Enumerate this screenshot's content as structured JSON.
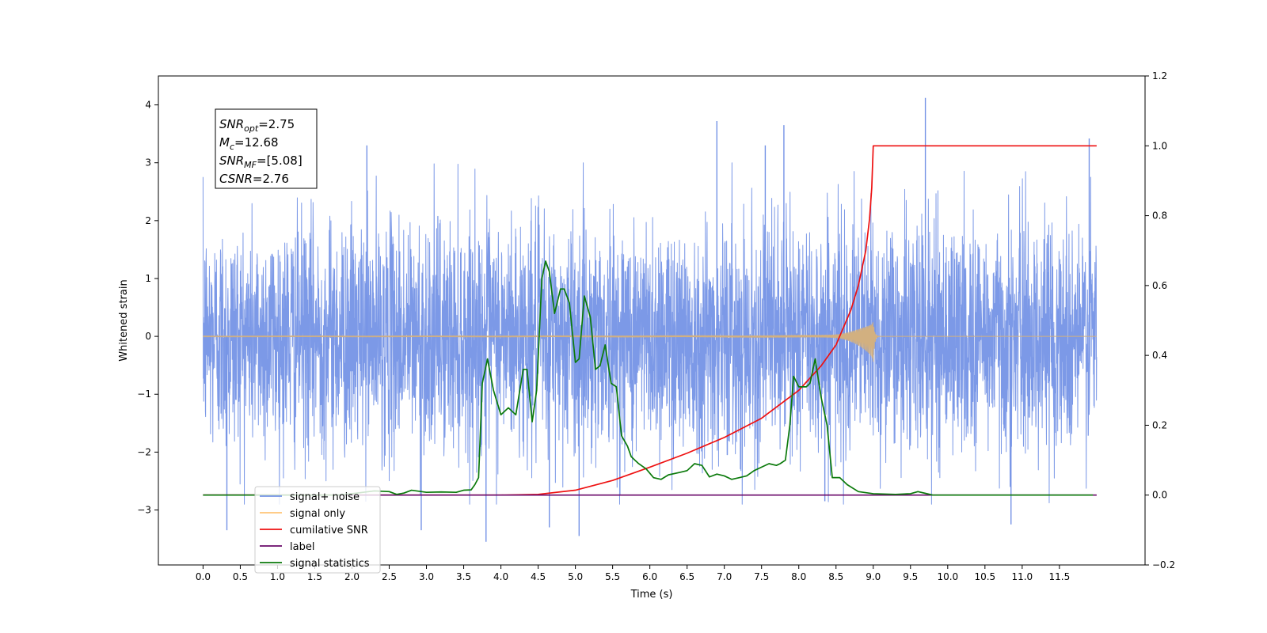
{
  "chart_data": {
    "type": "line",
    "xlabel": "Time (s)",
    "ylabel": "Whitened strain",
    "xlim": [
      -0.6,
      12.65
    ],
    "ylim": [
      -3.95,
      4.5
    ],
    "y2lim": [
      -0.2,
      1.2
    ],
    "x_ticks": [
      0.0,
      0.5,
      1.0,
      1.5,
      2.0,
      2.5,
      3.0,
      3.5,
      4.0,
      4.5,
      5.0,
      5.5,
      6.0,
      6.5,
      7.0,
      7.5,
      8.0,
      8.5,
      9.0,
      9.5,
      10.0,
      10.5,
      11.0,
      11.5
    ],
    "x_tick_labels": [
      "0.0",
      "0.5",
      "1.0",
      "1.5",
      "2.0",
      "2.5",
      "3.0",
      "3.5",
      "4.0",
      "4.5",
      "5.0",
      "5.5",
      "6.0",
      "6.5",
      "7.0",
      "7.5",
      "8.0",
      "8.5",
      "9.0",
      "9.5",
      "10.0",
      "10.5",
      "11.0",
      "11.5"
    ],
    "y_ticks": [
      -3,
      -2,
      -1,
      0,
      1,
      2,
      3,
      4
    ],
    "y_tick_labels": [
      "−3",
      "−2",
      "−1",
      "0",
      "1",
      "2",
      "3",
      "4"
    ],
    "y2_ticks": [
      -0.2,
      0.0,
      0.2,
      0.4,
      0.6,
      0.8,
      1.0,
      1.2
    ],
    "y2_tick_labels": [
      "−0.2",
      "0.0",
      "0.2",
      "0.4",
      "0.6",
      "0.8",
      "1.0",
      "1.2"
    ],
    "grid": false,
    "legend_position": "lower-left",
    "annotation": {
      "lines": [
        {
          "sym": "SNR",
          "sub": "opt",
          "value": "=2.75"
        },
        {
          "sym": "M",
          "sub": "c",
          "value": "=12.68"
        },
        {
          "sym": "SNR",
          "sub": "MF",
          "value": "=[5.08]"
        },
        {
          "sym": "CSNR",
          "sub": "",
          "value": "=2.76"
        }
      ]
    },
    "series": [
      {
        "name": "signal+ noise",
        "color": "#7593e6",
        "axis": "left",
        "kind": "noise",
        "x_range": [
          0.0,
          12.0
        ],
        "typical_amplitude": 1.6,
        "spikes": [
          {
            "x": 0.32,
            "y": -3.35
          },
          {
            "x": 2.2,
            "y": 3.3
          },
          {
            "x": 2.93,
            "y": -3.35
          },
          {
            "x": 3.8,
            "y": -3.55
          },
          {
            "x": 4.65,
            "y": -3.3
          },
          {
            "x": 5.05,
            "y": -3.45
          },
          {
            "x": 6.9,
            "y": 3.72
          },
          {
            "x": 7.55,
            "y": 3.3
          },
          {
            "x": 7.8,
            "y": 3.65
          },
          {
            "x": 9.7,
            "y": 4.12
          },
          {
            "x": 10.85,
            "y": -3.25
          },
          {
            "x": 11.9,
            "y": 3.42
          },
          {
            "x": 8.35,
            "y": -2.85
          }
        ]
      },
      {
        "name": "signal only",
        "color": "#d2b080",
        "axis": "left",
        "kind": "chirp",
        "x_range": [
          0.0,
          12.0
        ],
        "peak_x": 9.0,
        "peak_amplitude": 0.48
      },
      {
        "name": "cumilative SNR",
        "color": "#ee1111",
        "axis": "right",
        "x": [
          0.0,
          4.0,
          4.5,
          5.0,
          5.5,
          6.0,
          6.5,
          7.0,
          7.5,
          8.0,
          8.3,
          8.5,
          8.7,
          8.8,
          8.9,
          8.95,
          8.98,
          9.0,
          12.0
        ],
        "values": [
          0.0,
          0.0,
          0.002,
          0.014,
          0.042,
          0.08,
          0.12,
          0.165,
          0.22,
          0.3,
          0.37,
          0.43,
          0.53,
          0.6,
          0.7,
          0.79,
          0.88,
          1.0,
          1.0
        ]
      },
      {
        "name": "label",
        "color": "#6a0a6a",
        "axis": "right",
        "x": [
          0.0,
          12.0
        ],
        "values": [
          0.0,
          0.0
        ]
      },
      {
        "name": "signal statistics",
        "color": "#0b7a0b",
        "axis": "right",
        "x": [
          0.0,
          1.8,
          2.0,
          2.3,
          2.5,
          2.6,
          2.7,
          2.8,
          3.0,
          3.2,
          3.4,
          3.5,
          3.6,
          3.65,
          3.7,
          3.75,
          3.82,
          3.9,
          4.0,
          4.1,
          4.2,
          4.3,
          4.35,
          4.42,
          4.48,
          4.55,
          4.6,
          4.65,
          4.72,
          4.8,
          4.85,
          4.92,
          5.0,
          5.05,
          5.12,
          5.2,
          5.27,
          5.33,
          5.4,
          5.48,
          5.55,
          5.62,
          5.7,
          5.75,
          5.8,
          5.85,
          5.95,
          6.05,
          6.15,
          6.25,
          6.4,
          6.5,
          6.6,
          6.7,
          6.8,
          6.9,
          7.0,
          7.1,
          7.2,
          7.3,
          7.4,
          7.5,
          7.6,
          7.7,
          7.75,
          7.82,
          7.88,
          7.93,
          8.0,
          8.1,
          8.15,
          8.22,
          8.3,
          8.38,
          8.45,
          8.55,
          8.65,
          8.8,
          9.0,
          9.3,
          9.5,
          9.6,
          9.7,
          9.8,
          10.0,
          11.0,
          11.95
        ],
        "values": [
          0.0,
          0.0,
          0.004,
          0.012,
          0.01,
          0.002,
          0.006,
          0.014,
          0.008,
          0.009,
          0.008,
          0.014,
          0.015,
          0.03,
          0.05,
          0.32,
          0.39,
          0.3,
          0.23,
          0.25,
          0.23,
          0.36,
          0.36,
          0.21,
          0.3,
          0.62,
          0.67,
          0.64,
          0.52,
          0.59,
          0.59,
          0.55,
          0.38,
          0.39,
          0.57,
          0.51,
          0.36,
          0.37,
          0.43,
          0.32,
          0.31,
          0.17,
          0.14,
          0.11,
          0.1,
          0.09,
          0.075,
          0.05,
          0.045,
          0.058,
          0.065,
          0.07,
          0.09,
          0.085,
          0.052,
          0.06,
          0.055,
          0.045,
          0.05,
          0.055,
          0.07,
          0.08,
          0.09,
          0.085,
          0.09,
          0.1,
          0.2,
          0.34,
          0.31,
          0.31,
          0.32,
          0.39,
          0.28,
          0.2,
          0.05,
          0.05,
          0.03,
          0.01,
          0.004,
          0.002,
          0.004,
          0.01,
          0.005,
          0.0,
          0.0,
          0.0,
          0.0
        ]
      }
    ],
    "legend": [
      {
        "label": "signal+ noise",
        "color": "#7593e6"
      },
      {
        "label": "signal only",
        "color": "#ffc477"
      },
      {
        "label": "cumilative SNR",
        "color": "#ee1111"
      },
      {
        "label": "label",
        "color": "#6a0a6a"
      },
      {
        "label": "signal statistics",
        "color": "#0b7a0b"
      }
    ]
  }
}
